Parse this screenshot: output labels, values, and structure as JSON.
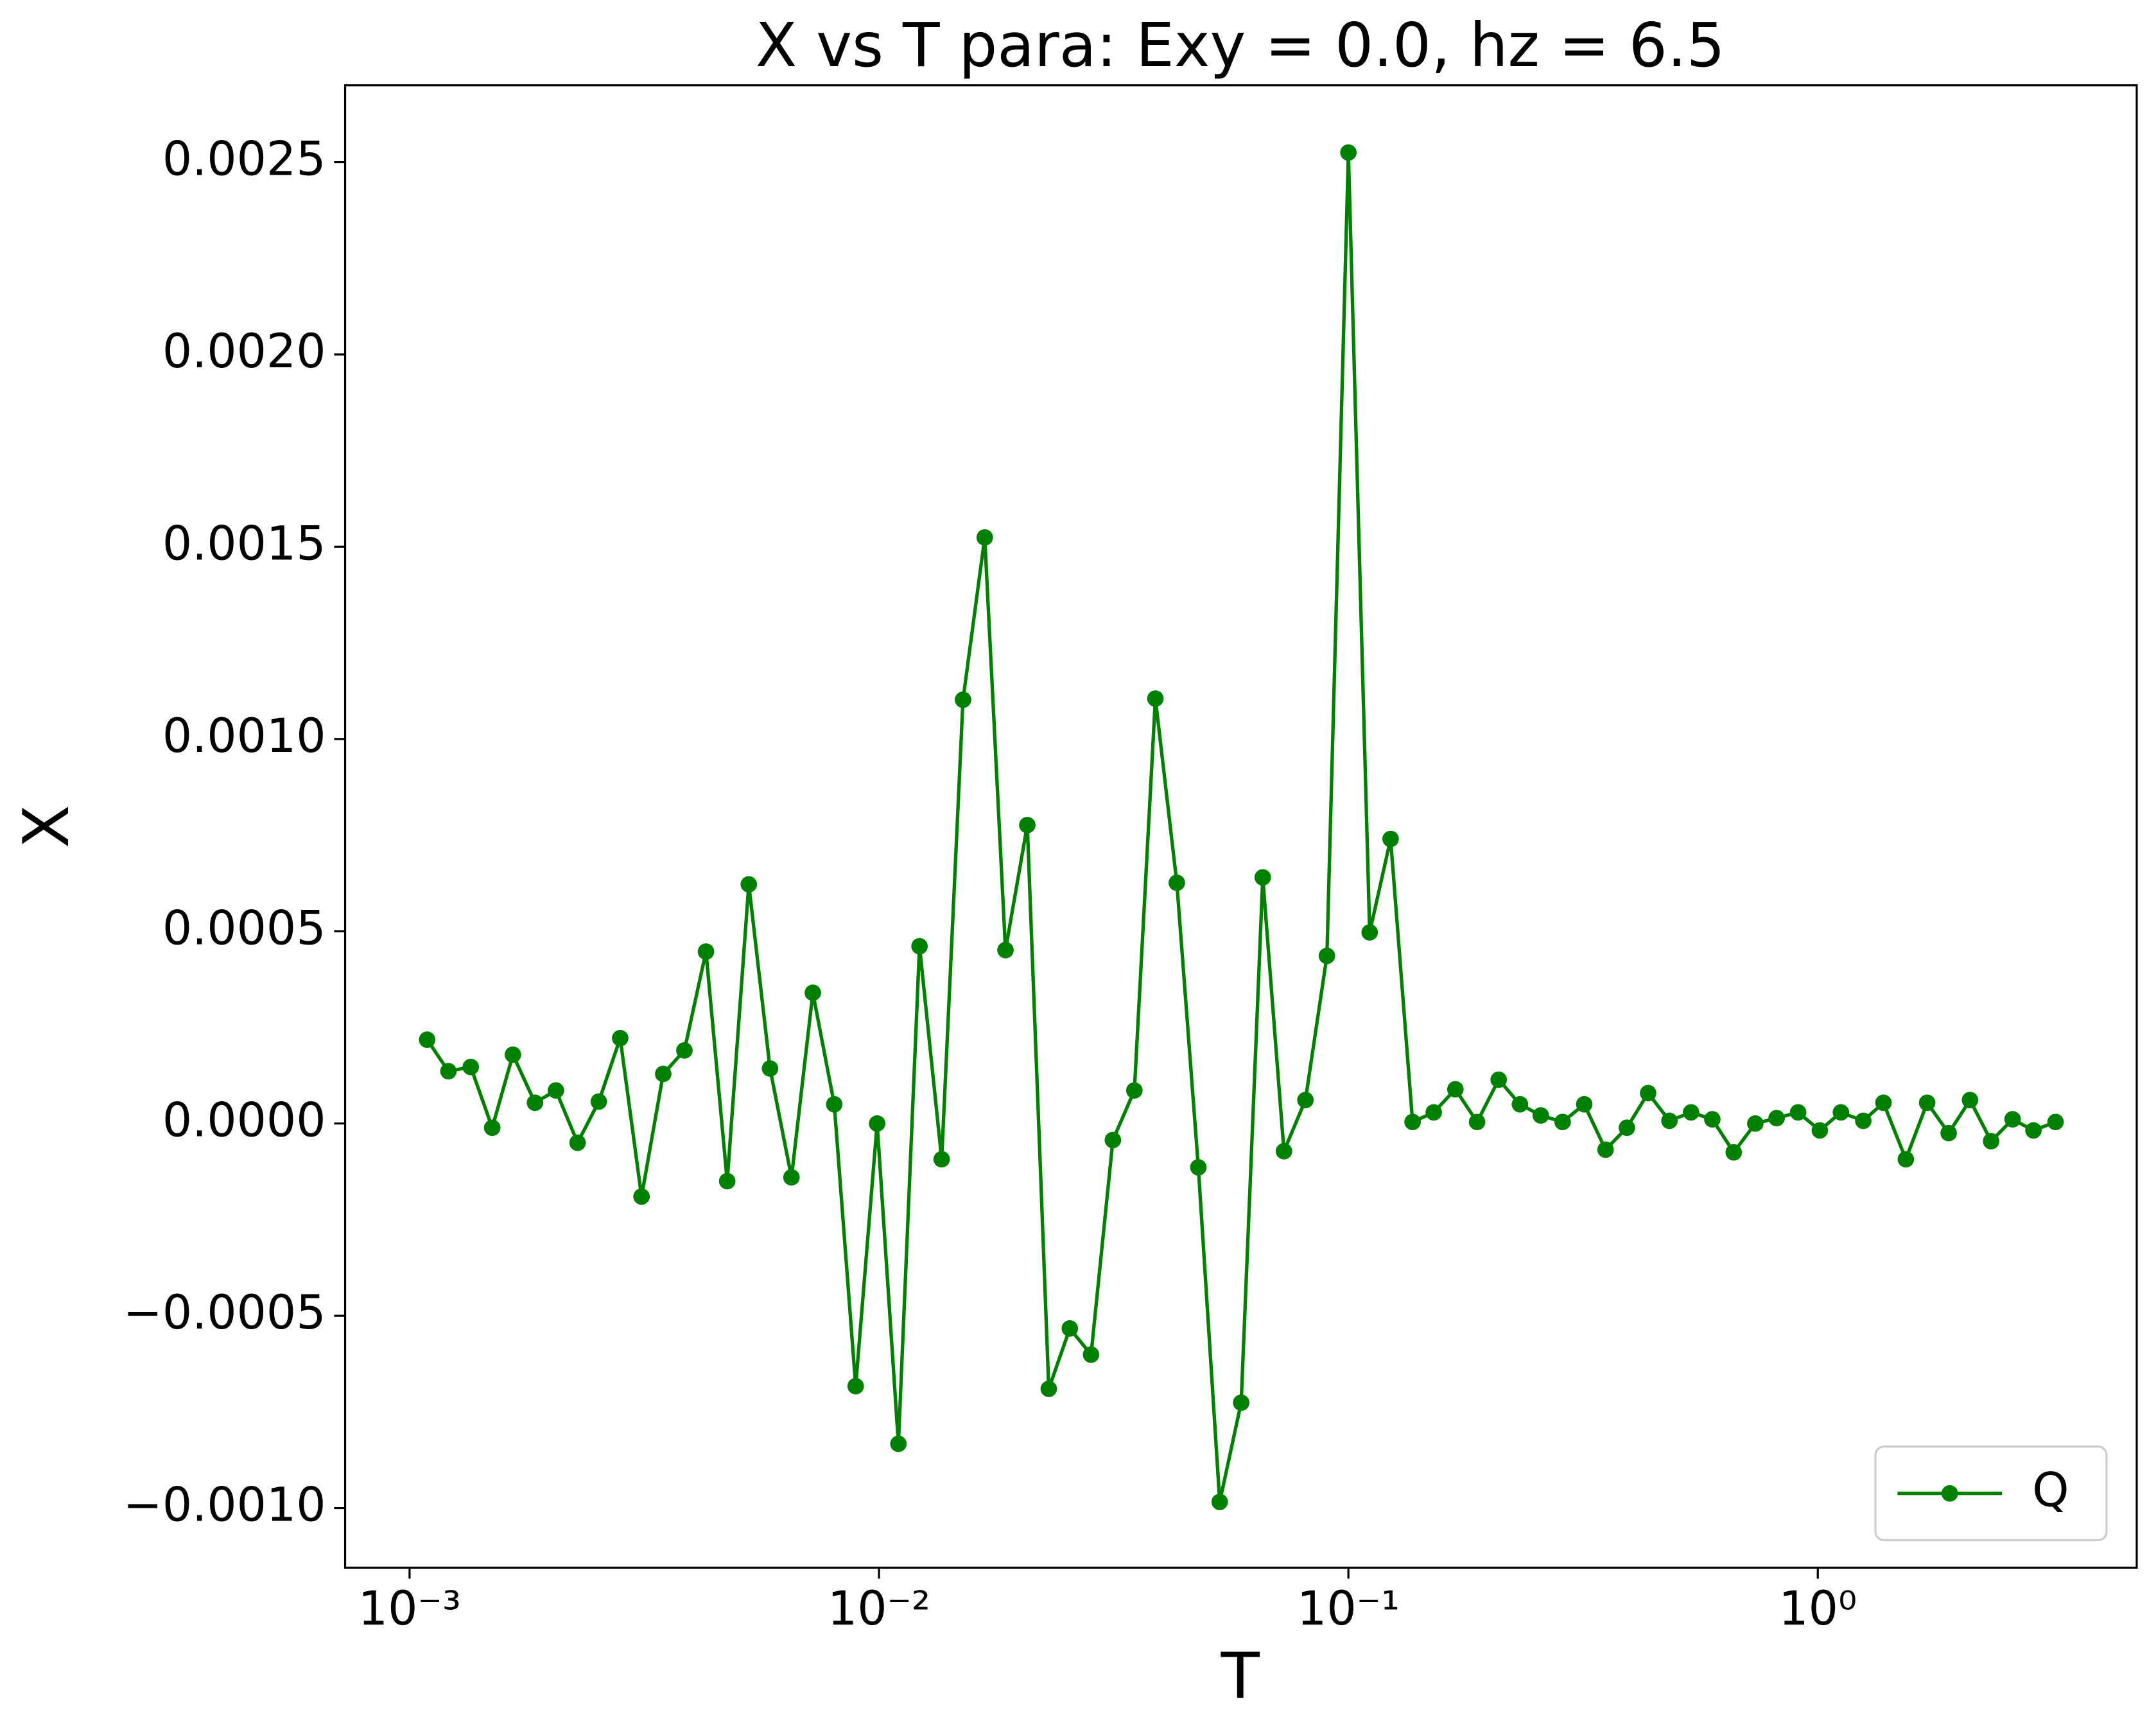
{
  "chart_data": {
    "type": "line",
    "title": "X vs T para: Exy = 0.0, hz = 6.5",
    "x_label": "T",
    "y_label": "X",
    "x": [
      0.00109,
      0.00121,
      0.00135,
      0.0015,
      0.00166,
      0.00185,
      0.00205,
      0.00228,
      0.00253,
      0.00281,
      0.00312,
      0.00347,
      0.00385,
      0.00428,
      0.00475,
      0.00528,
      0.00586,
      0.00651,
      0.00723,
      0.00803,
      0.00892,
      0.00991,
      0.011,
      0.0122,
      0.0136,
      0.0151,
      0.0168,
      0.0186,
      0.0207,
      0.023,
      0.0255,
      0.0283,
      0.0315,
      0.035,
      0.0388,
      0.0431,
      0.0479,
      0.0532,
      0.0591,
      0.0657,
      0.0729,
      0.081,
      0.09,
      0.1,
      0.111,
      0.123,
      0.137,
      0.152,
      0.169,
      0.188,
      0.209,
      0.232,
      0.257,
      0.286,
      0.318,
      0.353,
      0.392,
      0.435,
      0.483,
      0.537,
      0.596,
      0.662,
      0.736,
      0.817,
      0.908,
      1.01,
      1.12,
      1.25,
      1.38,
      1.54,
      1.71,
      1.9,
      2.11,
      2.34,
      2.6,
      2.88,
      3.21
    ],
    "series": [
      {
        "name": "Q",
        "color": "#008000",
        "values": [
          0.000218,
          0.000136,
          0.000147,
          -1.1e-05,
          0.000179,
          5.4e-05,
          8.6e-05,
          -5e-05,
          5.7e-05,
          0.000222,
          -0.00019,
          0.000129,
          0.00019,
          0.000447,
          -0.00015,
          0.000622,
          0.000143,
          -0.00014,
          0.00034,
          5e-05,
          -0.000683,
          0.0,
          -0.000833,
          0.000461,
          -9.3e-05,
          0.001102,
          0.001524,
          0.000451,
          0.000776,
          -0.00069,
          -0.000533,
          -0.000601,
          -4.3e-05,
          8.6e-05,
          0.001105,
          0.000626,
          -0.000114,
          -0.000984,
          -0.000726,
          0.00064,
          -7.2e-05,
          6.1e-05,
          0.000436,
          0.002525,
          0.000497,
          0.00074,
          4e-06,
          2.9e-05,
          8.9e-05,
          4e-06,
          0.000114,
          5e-05,
          2.1e-05,
          4e-06,
          5e-05,
          -6.8e-05,
          -1.1e-05,
          7.9e-05,
          7e-06,
          2.9e-05,
          1.1e-05,
          -7.5e-05,
          0.0,
          1.4e-05,
          2.9e-05,
          -1.8e-05,
          2.9e-05,
          7e-06,
          5.4e-05,
          -9.3e-05,
          5.4e-05,
          -2.5e-05,
          6.1e-05,
          -4.6e-05,
          1.1e-05,
          -1.8e-05,
          4e-06
        ]
      }
    ],
    "xscale": "log",
    "xlim": [
      0.000729,
      4.78
    ],
    "xticks": [
      {
        "value": 0.001,
        "label": "10⁻³"
      },
      {
        "value": 0.01,
        "label": "10⁻²"
      },
      {
        "value": 0.1,
        "label": "10⁻¹"
      },
      {
        "value": 1,
        "label": "10⁰"
      }
    ],
    "ylim": [
      -0.001155,
      0.0027
    ],
    "yticks": [
      {
        "value": -0.001,
        "label": "−0.0010"
      },
      {
        "value": -0.0005,
        "label": "−0.0005"
      },
      {
        "value": 0,
        "label": "0.0000"
      },
      {
        "value": 0.0005,
        "label": "0.0005"
      },
      {
        "value": 0.001,
        "label": "0.0010"
      },
      {
        "value": 0.0015,
        "label": "0.0015"
      },
      {
        "value": 0.002,
        "label": "0.0020"
      },
      {
        "value": 0.0025,
        "label": "0.0025"
      }
    ],
    "grid": false,
    "legend_position": "lower right"
  }
}
